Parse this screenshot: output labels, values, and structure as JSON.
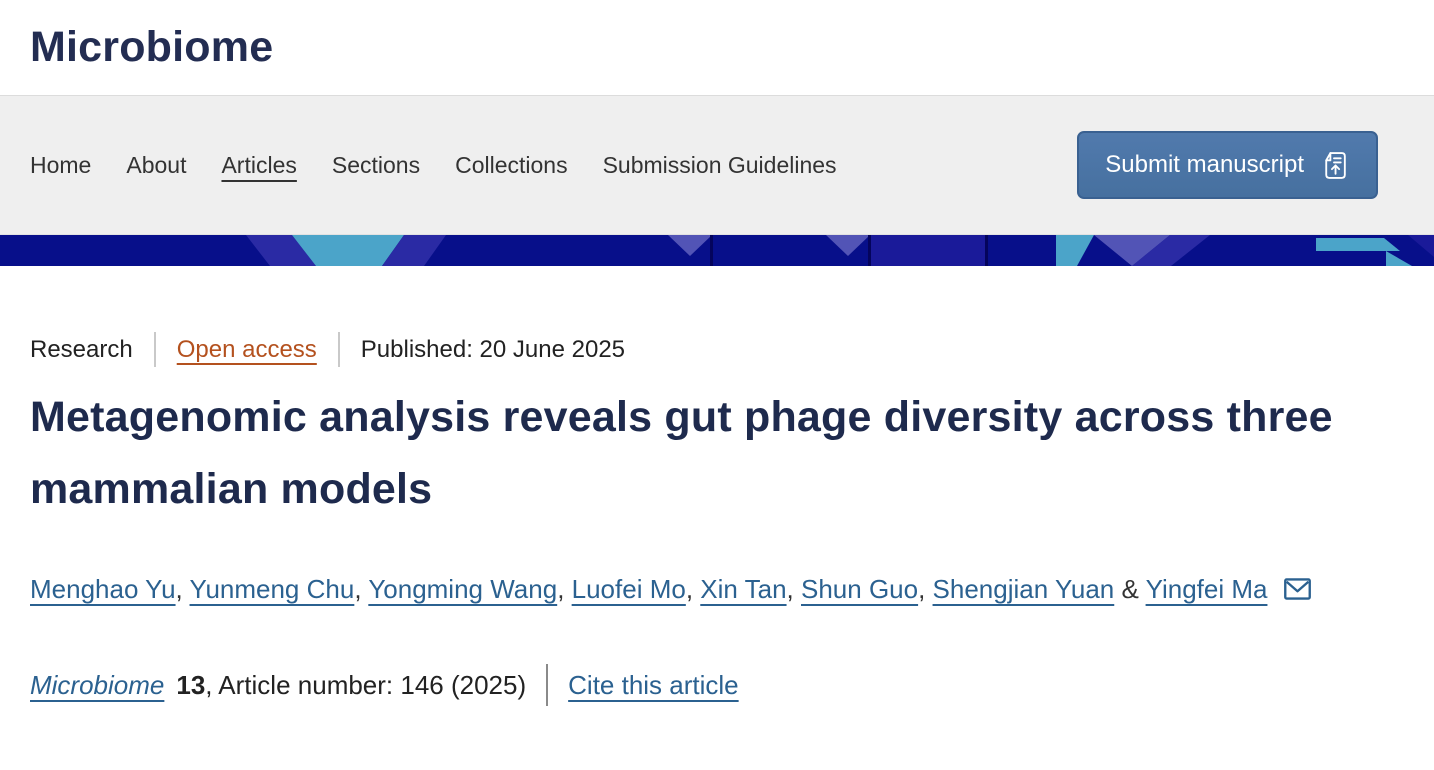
{
  "header": {
    "logo": "Microbiome"
  },
  "nav": {
    "items": [
      {
        "label": "Home",
        "current": false
      },
      {
        "label": "About",
        "current": false
      },
      {
        "label": "Articles",
        "current": true
      },
      {
        "label": "Sections",
        "current": false
      },
      {
        "label": "Collections",
        "current": false
      },
      {
        "label": "Submission Guidelines",
        "current": false
      }
    ],
    "submit_button": {
      "label": "Submit manuscript",
      "icon": "manuscript-upload-icon"
    }
  },
  "article": {
    "type": "Research",
    "access": "Open access",
    "published": "Published: 20 June 2025",
    "title": "Metagenomic analysis reveals gut phage diversity across three mammalian models",
    "authors": [
      "Menghao Yu",
      "Yunmeng Chu",
      "Yongming Wang",
      "Luofei Mo",
      "Xin Tan",
      "Shun Guo",
      "Shengjian Yuan"
    ],
    "corresponding_author": "Yingfei Ma",
    "journal": "Microbiome",
    "volume": "13",
    "article_info": ", Article number: 146 (2025)",
    "cite_label": "Cite this article"
  },
  "colors": {
    "brand_navy": "#232d52",
    "title_navy": "#1e2a4d",
    "link_blue": "#2b6190",
    "open_access_orange": "#b4511e",
    "button_blue": "#4a73a7",
    "banner_navy": "#070f8a",
    "banner_mid_blue": "#2a2aa4",
    "banner_purple": "#5254b6",
    "banner_teal": "#4ba4c9",
    "nav_gray": "#efefef"
  }
}
